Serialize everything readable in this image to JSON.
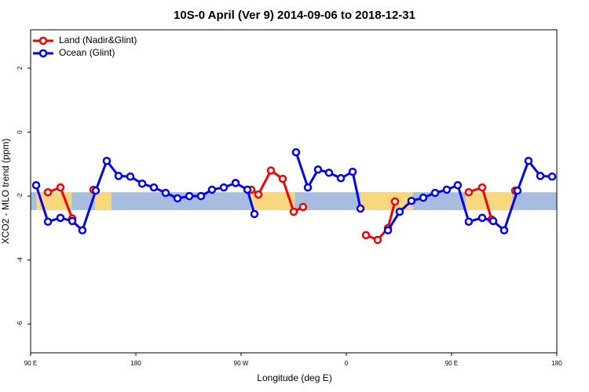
{
  "chart_data": {
    "type": "line",
    "title": "10S-0 April (Ver 9)   2014-09-06 to 2018-12-31",
    "xlabel": "Longitude (deg E)",
    "ylabel": "XCO2 - MLO trend (ppm)",
    "xlim": [
      90,
      540
    ],
    "ylim": [
      -6.9,
      3.2
    ],
    "xticks": [
      {
        "value": 90,
        "label": "90 E"
      },
      180,
      {
        "value": 270,
        "label": "90 W"
      },
      {
        "value": 360,
        "label": "0"
      },
      {
        "value": 450,
        "label": "90 E"
      },
      {
        "value": 540,
        "label": "180"
      }
    ],
    "yticks": [
      -6,
      -4,
      -2,
      0,
      2
    ],
    "band": [
      -2.44,
      -1.88
    ],
    "legend": "top-left",
    "series": [
      {
        "name": "Land (Nadir&Glint)",
        "color": "#ee0000",
        "x": [
          104.8,
          115.5,
          125.6,
          null,
          143.7,
          null,
          278.7,
          284.8,
          295.5,
          305.6,
          315.0,
          323.0,
          null,
          376.8,
          386.8,
          395.6,
          401.6,
          null,
          464.7,
          476.2,
          484.2,
          null,
          504.4
        ],
        "values": [
          -1.88,
          -1.73,
          -2.7,
          null,
          -1.8,
          null,
          -1.8,
          -1.95,
          -1.2,
          -1.46,
          -2.49,
          -2.34,
          null,
          -3.22,
          -3.37,
          -3.0,
          -2.17,
          null,
          -1.88,
          -1.73,
          -2.73,
          null,
          -1.83
        ]
      },
      {
        "name": "Ocean (Glint)",
        "color": "#0000ee",
        "x": [
          94.7,
          104.8,
          115.5,
          125.6,
          134.3,
          145.7,
          155.1,
          165.2,
          175.3,
          185.4,
          195.4,
          205.5,
          215.6,
          225.7,
          235.7,
          245.1,
          255.2,
          265.3,
          275.4,
          281.4,
          null,
          317.0,
          327.1,
          335.8,
          345.2,
          355.3,
          365.4,
          372.1,
          null,
          395.6,
          405.6,
          415.7,
          425.8,
          435.9,
          445.9,
          455.3,
          464.7,
          476.2,
          485.6,
          495.0,
          506.4,
          515.8,
          525.9,
          536.0
        ],
        "values": [
          -1.66,
          -2.8,
          -2.68,
          -2.78,
          -3.07,
          -1.83,
          -0.9,
          -1.37,
          -1.39,
          -1.61,
          -1.73,
          -1.9,
          -2.07,
          -2.0,
          -2.0,
          -1.8,
          -1.73,
          -1.59,
          -1.8,
          -2.56,
          null,
          -0.63,
          -1.73,
          -1.17,
          -1.27,
          -1.44,
          -1.24,
          -2.39,
          null,
          -3.07,
          -2.49,
          -2.15,
          -2.05,
          -1.9,
          -1.8,
          -1.66,
          -2.8,
          -2.68,
          -2.78,
          -3.07,
          -1.83,
          -0.9,
          -1.37,
          -1.39
        ]
      }
    ]
  }
}
